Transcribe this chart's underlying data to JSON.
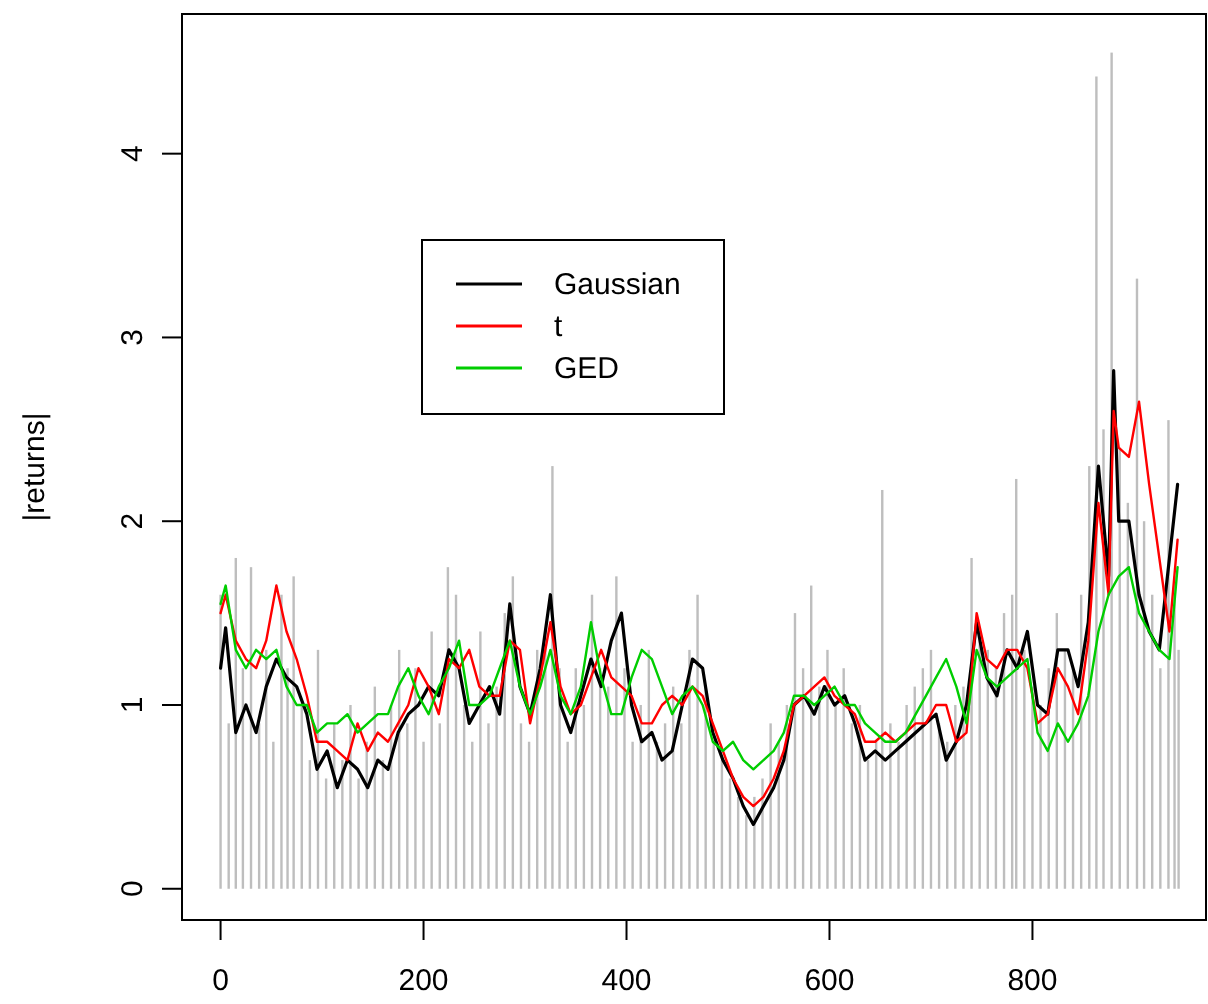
{
  "chart_data": {
    "type": "line",
    "ylabel": "|returns|",
    "xlim": [
      -38,
      971
    ],
    "ylim": [
      -0.17,
      4.76
    ],
    "xticks": [
      0,
      200,
      400,
      600,
      800
    ],
    "yticks": [
      0,
      1,
      2,
      3,
      4
    ],
    "grid": false,
    "legend": "top left",
    "series": [
      {
        "type": "bar",
        "color": "#bebebe",
        "x": [
          0,
          8,
          15,
          22,
          30,
          38,
          45,
          52,
          60,
          66,
          72,
          80,
          88,
          96,
          104,
          112,
          120,
          128,
          136,
          144,
          152,
          160,
          168,
          176,
          184,
          192,
          200,
          208,
          216,
          224,
          232,
          240,
          248,
          256,
          264,
          272,
          280,
          288,
          296,
          304,
          312,
          320,
          327,
          334,
          342,
          350,
          358,
          366,
          374,
          382,
          390,
          398,
          406,
          414,
          422,
          430,
          438,
          446,
          454,
          462,
          470,
          478,
          486,
          494,
          502,
          510,
          518,
          526,
          534,
          542,
          550,
          558,
          566,
          574,
          582,
          590,
          598,
          606,
          614,
          622,
          630,
          638,
          646,
          652,
          660,
          668,
          676,
          684,
          692,
          700,
          708,
          716,
          724,
          732,
          740,
          748,
          756,
          764,
          772,
          780,
          784,
          792,
          800,
          808,
          816,
          824,
          832,
          840,
          848,
          856,
          863,
          870,
          878,
          886,
          894,
          903,
          910,
          918,
          926,
          934,
          940,
          944
        ],
        "values": [
          1.6,
          0.9,
          1.8,
          1.2,
          1.75,
          0.9,
          1.3,
          0.8,
          1.6,
          1.2,
          1.7,
          1.0,
          0.7,
          1.3,
          0.6,
          0.9,
          0.7,
          1.0,
          0.6,
          0.8,
          1.1,
          0.7,
          1.0,
          1.3,
          0.9,
          1.2,
          0.8,
          1.4,
          0.9,
          1.75,
          1.6,
          1.0,
          0.8,
          1.4,
          0.9,
          1.1,
          1.5,
          1.7,
          0.9,
          0.8,
          1.3,
          1.4,
          2.3,
          1.2,
          0.8,
          1.2,
          1.0,
          1.6,
          1.2,
          1.1,
          1.7,
          1.2,
          0.8,
          1.0,
          1.3,
          0.8,
          0.9,
          1.1,
          0.9,
          1.3,
          1.6,
          1.1,
          0.8,
          0.7,
          0.6,
          0.5,
          0.4,
          0.5,
          0.6,
          0.9,
          0.8,
          1.0,
          1.5,
          1.2,
          1.65,
          1.1,
          1.3,
          1.0,
          1.2,
          0.9,
          1.0,
          0.7,
          0.8,
          2.17,
          0.9,
          0.8,
          1.0,
          1.1,
          1.2,
          1.3,
          0.9,
          0.8,
          1.0,
          1.1,
          1.8,
          1.4,
          1.3,
          1.2,
          1.5,
          1.6,
          2.23,
          1.3,
          1.1,
          1.0,
          1.2,
          1.5,
          1.3,
          1.2,
          1.6,
          2.3,
          4.42,
          2.5,
          4.55,
          2.4,
          2.1,
          3.32,
          2.0,
          1.6,
          1.2,
          2.55,
          1.7,
          1.3
        ]
      },
      {
        "name": "Gaussian",
        "color": "#000000",
        "x": [
          0,
          5,
          15,
          25,
          35,
          45,
          55,
          65,
          75,
          85,
          95,
          105,
          115,
          125,
          135,
          145,
          155,
          165,
          175,
          185,
          195,
          205,
          215,
          225,
          235,
          245,
          255,
          265,
          275,
          285,
          295,
          305,
          315,
          325,
          335,
          345,
          355,
          365,
          375,
          385,
          395,
          405,
          415,
          425,
          435,
          445,
          455,
          465,
          475,
          485,
          495,
          505,
          515,
          525,
          535,
          545,
          555,
          565,
          575,
          585,
          595,
          605,
          615,
          625,
          635,
          645,
          655,
          665,
          675,
          685,
          695,
          705,
          715,
          725,
          735,
          745,
          755,
          765,
          775,
          785,
          795,
          805,
          815,
          825,
          835,
          845,
          855,
          865,
          875,
          880,
          885,
          895,
          905,
          915,
          925,
          935,
          943
        ],
        "values": [
          1.2,
          1.42,
          0.85,
          1.0,
          0.85,
          1.1,
          1.25,
          1.15,
          1.1,
          0.95,
          0.65,
          0.75,
          0.55,
          0.7,
          0.65,
          0.55,
          0.7,
          0.65,
          0.85,
          0.95,
          1.0,
          1.1,
          1.05,
          1.3,
          1.2,
          0.9,
          1.0,
          1.1,
          0.95,
          1.55,
          1.1,
          0.95,
          1.2,
          1.6,
          1.0,
          0.85,
          1.05,
          1.25,
          1.1,
          1.35,
          1.5,
          1.0,
          0.8,
          0.85,
          0.7,
          0.75,
          1.0,
          1.25,
          1.2,
          0.85,
          0.7,
          0.6,
          0.45,
          0.35,
          0.45,
          0.55,
          0.7,
          1.0,
          1.05,
          0.95,
          1.1,
          1.0,
          1.05,
          0.9,
          0.7,
          0.75,
          0.7,
          0.75,
          0.8,
          0.85,
          0.9,
          0.95,
          0.7,
          0.8,
          1.0,
          1.45,
          1.15,
          1.05,
          1.3,
          1.2,
          1.4,
          1.0,
          0.95,
          1.3,
          1.3,
          1.1,
          1.45,
          2.3,
          1.7,
          2.82,
          2.0,
          2.0,
          1.6,
          1.4,
          1.3,
          1.8,
          2.2
        ]
      },
      {
        "name": "t",
        "color": "#ff0000",
        "x": [
          0,
          5,
          15,
          25,
          35,
          45,
          55,
          65,
          75,
          85,
          95,
          105,
          115,
          125,
          135,
          145,
          155,
          165,
          175,
          185,
          195,
          205,
          215,
          225,
          235,
          245,
          255,
          265,
          275,
          285,
          295,
          305,
          315,
          325,
          335,
          345,
          355,
          365,
          375,
          385,
          395,
          405,
          415,
          425,
          435,
          445,
          455,
          465,
          475,
          485,
          495,
          505,
          515,
          525,
          535,
          545,
          555,
          565,
          575,
          585,
          595,
          605,
          615,
          625,
          635,
          645,
          655,
          665,
          675,
          685,
          695,
          705,
          715,
          725,
          735,
          745,
          755,
          765,
          775,
          785,
          795,
          805,
          815,
          825,
          835,
          845,
          855,
          865,
          875,
          880,
          885,
          895,
          905,
          915,
          925,
          935,
          943
        ],
        "values": [
          1.5,
          1.6,
          1.35,
          1.25,
          1.2,
          1.35,
          1.65,
          1.4,
          1.25,
          1.05,
          0.8,
          0.8,
          0.75,
          0.7,
          0.9,
          0.75,
          0.85,
          0.8,
          0.9,
          1.0,
          1.2,
          1.1,
          0.95,
          1.25,
          1.2,
          1.3,
          1.1,
          1.05,
          1.05,
          1.35,
          1.3,
          0.9,
          1.15,
          1.45,
          1.1,
          0.95,
          1.0,
          1.15,
          1.3,
          1.15,
          1.1,
          1.05,
          0.9,
          0.9,
          1.0,
          1.05,
          1.0,
          1.1,
          1.05,
          0.9,
          0.75,
          0.6,
          0.5,
          0.45,
          0.5,
          0.6,
          0.75,
          1.0,
          1.05,
          1.1,
          1.15,
          1.05,
          1.0,
          0.95,
          0.8,
          0.8,
          0.85,
          0.8,
          0.85,
          0.9,
          0.9,
          1.0,
          1.0,
          0.8,
          0.85,
          1.5,
          1.25,
          1.2,
          1.3,
          1.3,
          1.2,
          0.9,
          0.95,
          1.2,
          1.1,
          0.95,
          1.35,
          2.1,
          1.6,
          2.6,
          2.4,
          2.35,
          2.65,
          2.2,
          1.8,
          1.4,
          1.9
        ]
      },
      {
        "name": "GED",
        "color": "#00cd00",
        "x": [
          0,
          5,
          15,
          25,
          35,
          45,
          55,
          65,
          75,
          85,
          95,
          105,
          115,
          125,
          135,
          145,
          155,
          165,
          175,
          185,
          195,
          205,
          215,
          225,
          235,
          245,
          255,
          265,
          275,
          285,
          295,
          305,
          315,
          325,
          335,
          345,
          355,
          365,
          375,
          385,
          395,
          405,
          415,
          425,
          435,
          445,
          455,
          465,
          475,
          485,
          495,
          505,
          515,
          525,
          535,
          545,
          555,
          565,
          575,
          585,
          595,
          605,
          615,
          625,
          635,
          645,
          655,
          665,
          675,
          685,
          695,
          705,
          715,
          725,
          735,
          745,
          755,
          765,
          775,
          785,
          795,
          805,
          815,
          825,
          835,
          845,
          855,
          865,
          875,
          885,
          895,
          905,
          915,
          925,
          935,
          943
        ],
        "values": [
          1.55,
          1.65,
          1.3,
          1.2,
          1.3,
          1.25,
          1.3,
          1.1,
          1.0,
          1.0,
          0.85,
          0.9,
          0.9,
          0.95,
          0.85,
          0.9,
          0.95,
          0.95,
          1.1,
          1.2,
          1.05,
          0.95,
          1.1,
          1.2,
          1.35,
          1.0,
          1.0,
          1.05,
          1.2,
          1.35,
          1.1,
          0.95,
          1.1,
          1.3,
          1.05,
          0.95,
          1.1,
          1.45,
          1.15,
          0.95,
          0.95,
          1.15,
          1.3,
          1.25,
          1.1,
          0.95,
          1.05,
          1.1,
          1.0,
          0.8,
          0.75,
          0.8,
          0.7,
          0.65,
          0.7,
          0.75,
          0.85,
          1.05,
          1.05,
          1.0,
          1.05,
          1.1,
          1.0,
          1.0,
          0.9,
          0.85,
          0.8,
          0.8,
          0.85,
          0.95,
          1.05,
          1.15,
          1.25,
          1.1,
          0.9,
          1.3,
          1.15,
          1.1,
          1.15,
          1.2,
          1.25,
          0.85,
          0.75,
          0.9,
          0.8,
          0.9,
          1.05,
          1.4,
          1.6,
          1.7,
          1.75,
          1.5,
          1.4,
          1.3,
          1.25,
          1.75
        ]
      }
    ]
  }
}
